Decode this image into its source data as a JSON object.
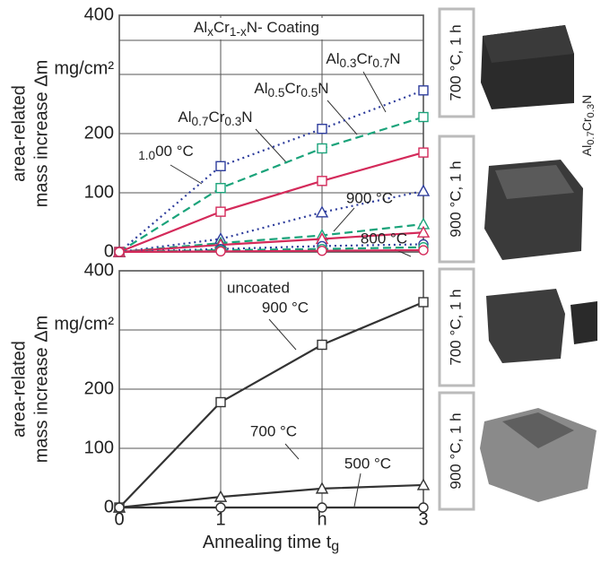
{
  "chart_data": [
    {
      "type": "line",
      "ylabel": [
        "area-related",
        "mass increase Δm"
      ],
      "annotations": [
        "AlxCr1-xN- Coating",
        "Al0.3Cr0.7N",
        "Al0.5Cr0.5N",
        "Al0.7Cr0.3N",
        "1.000 °C",
        "900 °C",
        "800 °C"
      ],
      "x": [
        0,
        1,
        2,
        3
      ],
      "xlim": [
        0,
        3
      ],
      "xticks": [
        0,
        1,
        {
          "value": 2,
          "label": "h"
        },
        3
      ],
      "ylim": [
        0,
        400
      ],
      "yticks": [
        0,
        100,
        200,
        {
          "value": 300,
          "label": "mg/cm²"
        },
        400
      ],
      "grid": true,
      "series": [
        {
          "color": "#2e3d9c",
          "dash": "dotted",
          "marker": "square",
          "values": [
            0,
            145,
            208,
            273
          ]
        },
        {
          "color": "#1aa37a",
          "dash": "dashed",
          "marker": "square",
          "values": [
            0,
            108,
            175,
            228
          ]
        },
        {
          "color": "#d42a5a",
          "dash": "solid",
          "marker": "square",
          "values": [
            0,
            68,
            120,
            168
          ]
        },
        {
          "color": "#2e3d9c",
          "dash": "dotted",
          "marker": "triangle",
          "values": [
            0,
            22,
            67,
            103
          ]
        },
        {
          "color": "#1aa37a",
          "dash": "dashed",
          "marker": "triangle",
          "values": [
            0,
            15,
            28,
            47
          ]
        },
        {
          "color": "#d42a5a",
          "dash": "solid",
          "marker": "triangle",
          "values": [
            0,
            12,
            22,
            33
          ]
        },
        {
          "color": "#2e3d9c",
          "dash": "dotted",
          "marker": "circle",
          "values": [
            0,
            5,
            10,
            13
          ]
        },
        {
          "color": "#1aa37a",
          "dash": "dashed",
          "marker": "circle",
          "values": [
            0,
            3,
            5,
            8
          ]
        },
        {
          "color": "#d42a5a",
          "dash": "solid",
          "marker": "circle",
          "values": [
            0,
            1,
            2,
            3
          ]
        }
      ]
    },
    {
      "type": "line",
      "ylabel": [
        "area-related",
        "mass increase Δm"
      ],
      "xlabel": "Annealing time tg",
      "annotations": [
        "uncoated",
        "900 °C",
        "700 °C",
        "500 °C"
      ],
      "x": [
        0,
        1,
        2,
        3
      ],
      "xlim": [
        0,
        3
      ],
      "xticks": [
        0,
        1,
        {
          "value": 2,
          "label": "h"
        },
        3
      ],
      "ylim": [
        0,
        400
      ],
      "yticks": [
        0,
        100,
        200,
        {
          "value": 300,
          "label": "mg/cm²"
        },
        400
      ],
      "grid": true,
      "series": [
        {
          "color": "#333333",
          "dash": "solid",
          "marker": "square",
          "values": [
            0,
            178,
            275,
            347
          ]
        },
        {
          "color": "#333333",
          "dash": "solid",
          "marker": "triangle",
          "values": [
            0,
            18,
            32,
            38
          ]
        },
        {
          "color": "#333333",
          "dash": "solid",
          "marker": "circle",
          "values": [
            0,
            0,
            0,
            0
          ]
        }
      ]
    }
  ],
  "photos": {
    "labels": [
      "700 °C, 1 h",
      "900 °C, 1 h",
      "700 °C, 1 h",
      "900 °C, 1 h"
    ],
    "material": "Al0.7Cr0.3N"
  }
}
